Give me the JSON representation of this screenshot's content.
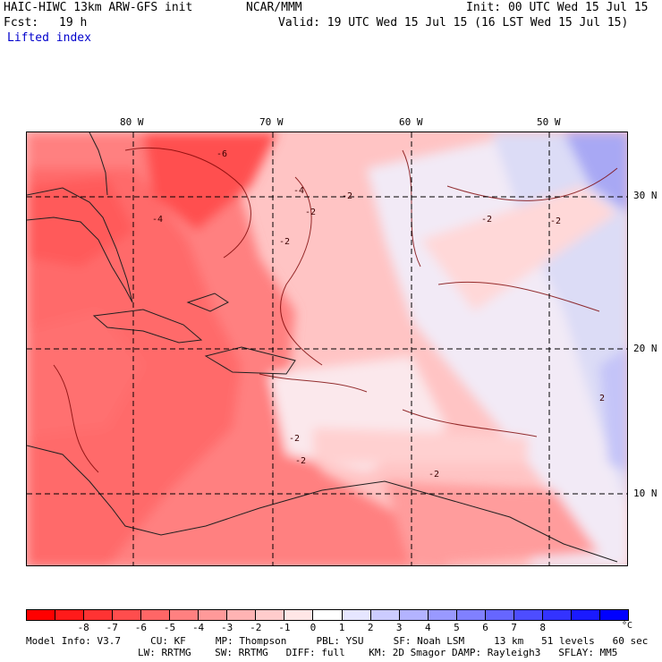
{
  "header": {
    "model_title": "HAIC-HIWC 13km ARW-GFS init",
    "org": "NCAR/MMM",
    "init": "Init: 00 UTC Wed 15 Jul 15",
    "fcst_label": "Fcst:",
    "fcst_value": "19 h",
    "valid": "Valid: 19 UTC Wed 15 Jul 15 (16 LST Wed 15 Jul 15)",
    "field": "Lifted index"
  },
  "map": {
    "longitude_labels": [
      "80 W",
      "70 W",
      "60 W",
      "50 W"
    ],
    "latitude_labels": [
      "30 N",
      "20 N",
      "10 N"
    ],
    "contour_labels": [
      "-6",
      "-4",
      "-2",
      "-2",
      "-2",
      "-2",
      "-2",
      "-2",
      "-2",
      "-4",
      "2",
      "-2"
    ]
  },
  "colorbar": {
    "colors": [
      "#ff0000",
      "#ff1a1a",
      "#ff3333",
      "#ff4d4d",
      "#ff6666",
      "#ff8080",
      "#ff9999",
      "#ffb3b3",
      "#ffcccc",
      "#ffe6e6",
      "#ffffff",
      "#e6e6ff",
      "#ccccff",
      "#b3b3ff",
      "#9999ff",
      "#8080ff",
      "#6666ff",
      "#4d4dff",
      "#3333ff",
      "#1a1aff",
      "#0000ff"
    ],
    "tick_labels": [
      "-8",
      "-7",
      "-6",
      "-5",
      "-4",
      "-3",
      "-2",
      "-1",
      "0",
      "1",
      "2",
      "3",
      "4",
      "5",
      "6",
      "7",
      "8"
    ],
    "unit": "°C"
  },
  "footer": {
    "line1": "Model Info: V3.7     CU: KF     MP: Thompson     PBL: YSU     SF: Noah LSM     13 km   51 levels   60 sec",
    "line2": "LW: RRTMG    SW: RRTMG   DIFF: full    KM: 2D Smagor DAMP: Rayleigh3   SFLAY: MM5"
  }
}
